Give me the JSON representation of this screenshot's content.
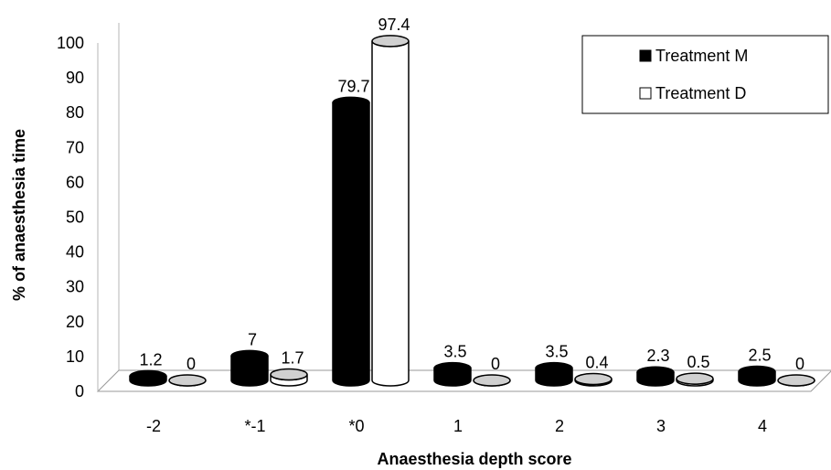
{
  "chart_data": {
    "type": "bar",
    "style": "3d-cylinder",
    "title": "",
    "xlabel": "Anaesthesia depth score",
    "ylabel": "% of anaesthesia time",
    "ylim": [
      0,
      100
    ],
    "yticks": [
      "0",
      "10",
      "20",
      "30",
      "40",
      "50",
      "60",
      "70",
      "80",
      "90",
      "100"
    ],
    "categories": [
      "-2",
      "*-1",
      "*0",
      "1",
      "2",
      "3",
      "4"
    ],
    "series": [
      {
        "name": "Treatment M",
        "color": "#000000",
        "values": [
          1.2,
          7,
          79.7,
          3.5,
          3.5,
          2.3,
          2.5
        ],
        "labels": [
          "1.2",
          "7",
          "79.7",
          "3.5",
          "3.5",
          "2.3",
          "2.5"
        ]
      },
      {
        "name": "Treatment D",
        "color": "#ffffff",
        "values": [
          0,
          1.7,
          97.4,
          0,
          0.4,
          0.5,
          0
        ],
        "labels": [
          "0",
          "1.7",
          "97.4",
          "0",
          "0.4",
          "0.5",
          "0"
        ]
      }
    ],
    "legend_position": "top-right",
    "grid": false
  }
}
